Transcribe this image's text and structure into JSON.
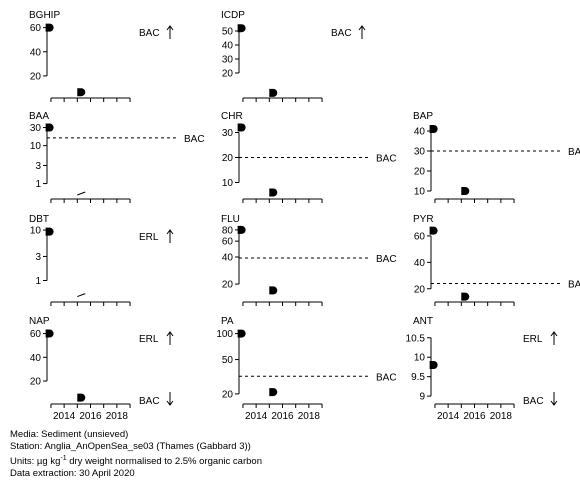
{
  "chart_data": [
    {
      "title": "BGHIP",
      "type": "scatter",
      "yticks": [
        20,
        40,
        60
      ],
      "ylim": [
        5,
        63
      ],
      "ylog": false,
      "points": [
        [
          2012.9,
          60
        ],
        [
          2015.3,
          6.5
        ]
      ],
      "segments": [],
      "ref_label": "BAC",
      "ref_value": null,
      "arrow": "up",
      "bottom_label": "",
      "bottom_arrow": ""
    },
    {
      "title": "ICDP",
      "type": "scatter",
      "yticks": [
        20,
        30,
        40,
        50
      ],
      "ylim": [
        5,
        55
      ],
      "ylog": false,
      "points": [
        [
          2012.9,
          52
        ],
        [
          2015.3,
          5.8
        ]
      ],
      "segments": [],
      "ref_label": "BAC",
      "ref_value": null,
      "arrow": "up",
      "bottom_label": "",
      "bottom_arrow": ""
    },
    {
      "title": "BAA",
      "type": "scatter",
      "yticks": [
        1,
        3,
        10,
        30
      ],
      "ylim": [
        0.5,
        35
      ],
      "ylog": true,
      "points": [
        [
          2012.9,
          30
        ]
      ],
      "segments": [
        [
          [
            2015.0,
            0.5
          ],
          [
            2015.6,
            0.6
          ]
        ]
      ],
      "ref_label": "BAC",
      "ref_value": 16,
      "arrow": "",
      "bottom_label": "",
      "bottom_arrow": ""
    },
    {
      "title": "CHR",
      "type": "scatter",
      "yticks": [
        10,
        20,
        30
      ],
      "ylim": [
        5,
        33
      ],
      "ylog": false,
      "points": [
        [
          2012.9,
          32
        ],
        [
          2015.3,
          6
        ]
      ],
      "segments": [],
      "ref_label": "BAC",
      "ref_value": 20,
      "arrow": "",
      "bottom_label": "",
      "bottom_arrow": ""
    },
    {
      "title": "BAP",
      "type": "scatter",
      "yticks": [
        10,
        20,
        30,
        40
      ],
      "ylim": [
        8,
        43
      ],
      "ylog": false,
      "points": [
        [
          2012.9,
          41
        ],
        [
          2015.3,
          10
        ]
      ],
      "segments": [],
      "ref_label": "BAC",
      "ref_value": 30,
      "arrow": "",
      "bottom_label": "",
      "bottom_arrow": ""
    },
    {
      "title": "DBT",
      "type": "scatter",
      "yticks": [
        1,
        3,
        10
      ],
      "ylim": [
        0.45,
        11
      ],
      "ylog": true,
      "points": [
        [
          2012.9,
          9.3
        ]
      ],
      "segments": [
        [
          [
            2015.0,
            0.48
          ],
          [
            2015.6,
            0.55
          ]
        ]
      ],
      "ref_label": "ERL",
      "ref_value": null,
      "arrow": "up",
      "bottom_label": "",
      "bottom_arrow": ""
    },
    {
      "title": "FLU",
      "type": "scatter",
      "yticks": [
        20,
        40,
        60,
        80
      ],
      "ylim": [
        14,
        84
      ],
      "ylog": true,
      "points": [
        [
          2012.9,
          80
        ],
        [
          2015.3,
          17
        ]
      ],
      "segments": [],
      "ref_label": "BAC",
      "ref_value": 39,
      "arrow": "",
      "bottom_label": "",
      "bottom_arrow": ""
    },
    {
      "title": "PYR",
      "type": "scatter",
      "yticks": [
        20,
        40,
        60
      ],
      "ylim": [
        13,
        66
      ],
      "ylog": false,
      "points": [
        [
          2012.9,
          64
        ],
        [
          2015.3,
          14
        ]
      ],
      "segments": [],
      "ref_label": "BAC",
      "ref_value": 24,
      "arrow": "",
      "bottom_label": "",
      "bottom_arrow": ""
    },
    {
      "title": "NAP",
      "type": "scatter",
      "yticks": [
        20,
        40,
        60
      ],
      "ylim": [
        4,
        63
      ],
      "ylog": false,
      "points": [
        [
          2012.9,
          60
        ],
        [
          2015.3,
          6
        ]
      ],
      "segments": [],
      "ref_label": "ERL",
      "ref_value": null,
      "arrow": "up",
      "bottom_label": "BAC",
      "bottom_arrow": "down"
    },
    {
      "title": "PA",
      "type": "scatter",
      "yticks": [
        20,
        50,
        100
      ],
      "ylim": [
        17,
        110
      ],
      "ylog": true,
      "points": [
        [
          2012.9,
          100
        ],
        [
          2015.3,
          21
        ]
      ],
      "segments": [],
      "ref_label": "BAC",
      "ref_value": 32,
      "arrow": "",
      "bottom_label": "",
      "bottom_arrow": ""
    },
    {
      "title": "ANT",
      "type": "scatter",
      "yticks": [
        9.0,
        9.5,
        10.0,
        10.5
      ],
      "ylim": [
        8.9,
        10.7
      ],
      "ylog": false,
      "points": [
        [
          2012.9,
          9.8
        ]
      ],
      "segments": [],
      "ref_label": "ERL",
      "ref_value": null,
      "arrow": "up",
      "bottom_label": "BAC",
      "bottom_arrow": "down"
    }
  ],
  "x_axis": {
    "ticks": [
      2014,
      2016,
      2018
    ],
    "minor_ticks": [
      2013,
      2014,
      2015,
      2016,
      2017,
      2018,
      2019
    ],
    "xlim": [
      2012.7,
      2019.3
    ]
  },
  "footer": {
    "media": "Media: Sediment (unsieved)",
    "station": "Station: Anglia_AnOpenSea_se03 (Thames (Gabbard 3))",
    "units_prefix": "Units:  µg kg",
    "units_sup": "-1",
    "units_suffix": " dry weight normalised to 2.5% organic carbon",
    "extraction": "Data extraction: 30 April 2020"
  }
}
